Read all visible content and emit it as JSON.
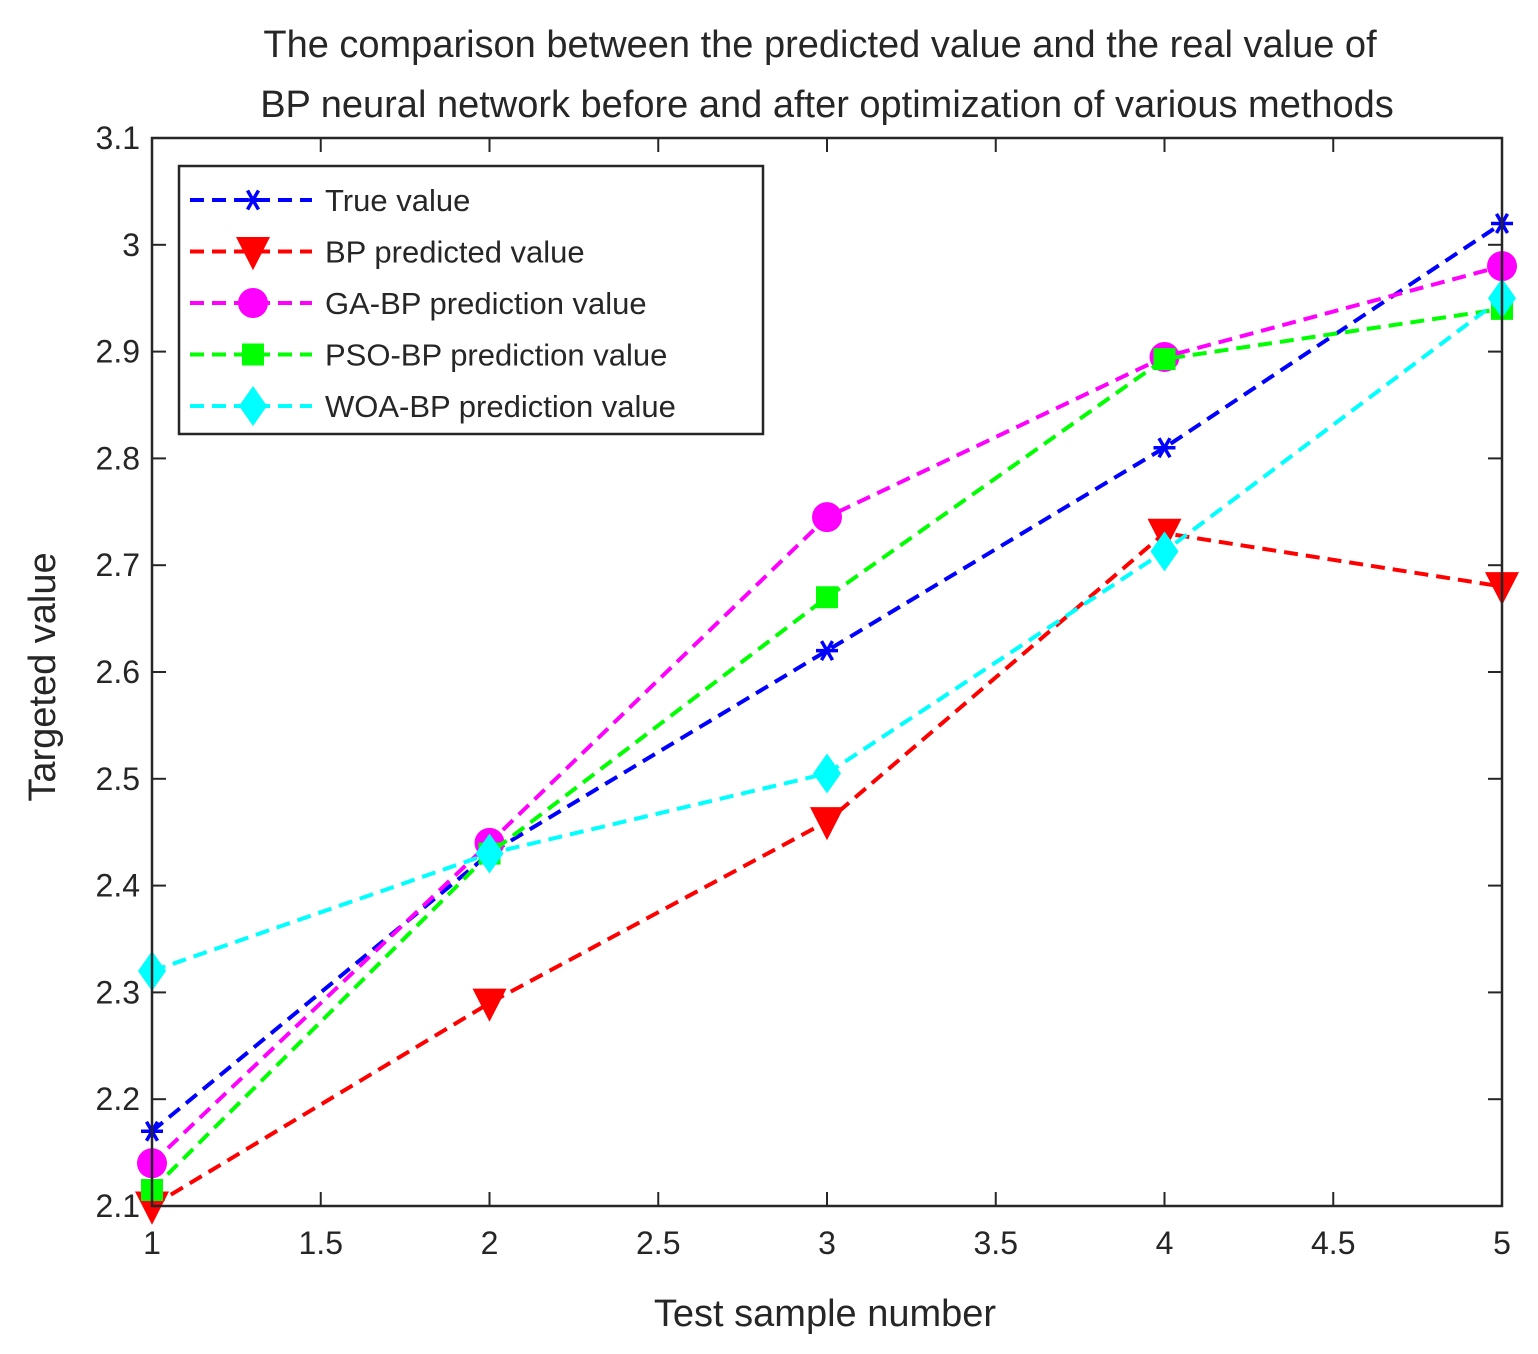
{
  "chart_data": {
    "type": "line",
    "title": [
      "The comparison between the predicted value and the real value of",
      "BP neural network before and after optimization of various methods"
    ],
    "xlabel": "Test sample number",
    "ylabel": "Targeted value",
    "xlim": [
      1,
      5
    ],
    "ylim": [
      2.1,
      3.1
    ],
    "xticks": [
      1,
      1.5,
      2,
      2.5,
      3,
      3.5,
      4,
      4.5,
      5
    ],
    "xtick_labels": [
      "1",
      "1.5",
      "2",
      "2.5",
      "3",
      "3.5",
      "4",
      "4.5",
      "5"
    ],
    "yticks": [
      2.1,
      2.2,
      2.3,
      2.4,
      2.5,
      2.6,
      2.7,
      2.8,
      2.9,
      3.0,
      3.1
    ],
    "ytick_labels": [
      "2.1",
      "2.2",
      "2.3",
      "2.4",
      "2.5",
      "2.6",
      "2.7",
      "2.8",
      "2.9",
      "3",
      "3.1"
    ],
    "grid": false,
    "legend_position": "top-left",
    "x": [
      1,
      2,
      3,
      4,
      5
    ],
    "series": [
      {
        "name": "True value",
        "values": [
          2.17,
          2.43,
          2.62,
          2.81,
          3.02
        ],
        "color": "#0000ff",
        "marker": "asterisk"
      },
      {
        "name": "BP predicted value",
        "values": [
          2.1,
          2.29,
          2.46,
          2.73,
          2.68
        ],
        "color": "#ff0000",
        "marker": "triangle-down"
      },
      {
        "name": "GA-BP prediction value",
        "values": [
          2.14,
          2.44,
          2.745,
          2.895,
          2.98
        ],
        "color": "#ff00ff",
        "marker": "circle"
      },
      {
        "name": "PSO-BP prediction value",
        "values": [
          2.115,
          2.43,
          2.67,
          2.893,
          2.94
        ],
        "color": "#00ff00",
        "marker": "square"
      },
      {
        "name": "WOA-BP prediction value",
        "values": [
          2.32,
          2.43,
          2.505,
          2.713,
          2.95
        ],
        "color": "#00ffff",
        "marker": "diamond"
      }
    ]
  }
}
